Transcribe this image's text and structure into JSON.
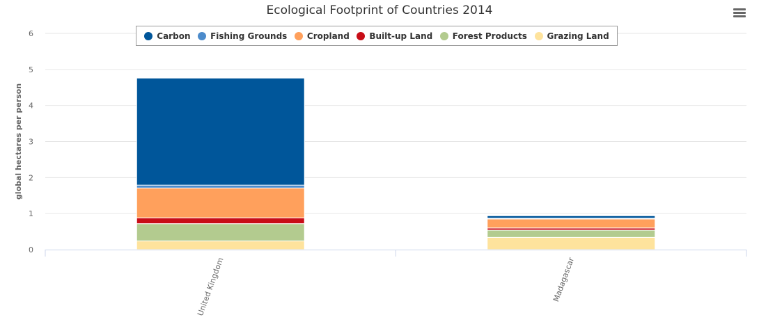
{
  "chart_data": {
    "type": "bar",
    "stacked": true,
    "title": "Ecological Footprint of Countries 2014",
    "xlabel": "",
    "ylabel": "global hectares per person",
    "ylim": [
      0,
      6
    ],
    "yticks": [
      "0",
      "1",
      "2",
      "3",
      "4",
      "5",
      "6"
    ],
    "grid": true,
    "legend_position": "top",
    "categories": [
      "United Kingdom",
      "Madagascar"
    ],
    "series": [
      {
        "name": "Carbon",
        "color": "#00569a",
        "values": [
          2.97,
          0.07
        ]
      },
      {
        "name": "Fishing Grounds",
        "color": "#4c8bcb",
        "values": [
          0.08,
          0.02
        ]
      },
      {
        "name": "Cropland",
        "color": "#ffa05c",
        "values": [
          0.83,
          0.25
        ]
      },
      {
        "name": "Built-up Land",
        "color": "#c80d17",
        "values": [
          0.16,
          0.06
        ]
      },
      {
        "name": "Forest Products",
        "color": "#b3cb8f",
        "values": [
          0.48,
          0.2
        ]
      },
      {
        "name": "Grazing Land",
        "color": "#fee39d",
        "values": [
          0.24,
          0.34
        ]
      }
    ]
  },
  "menu_icon": "hamburger-menu-icon"
}
